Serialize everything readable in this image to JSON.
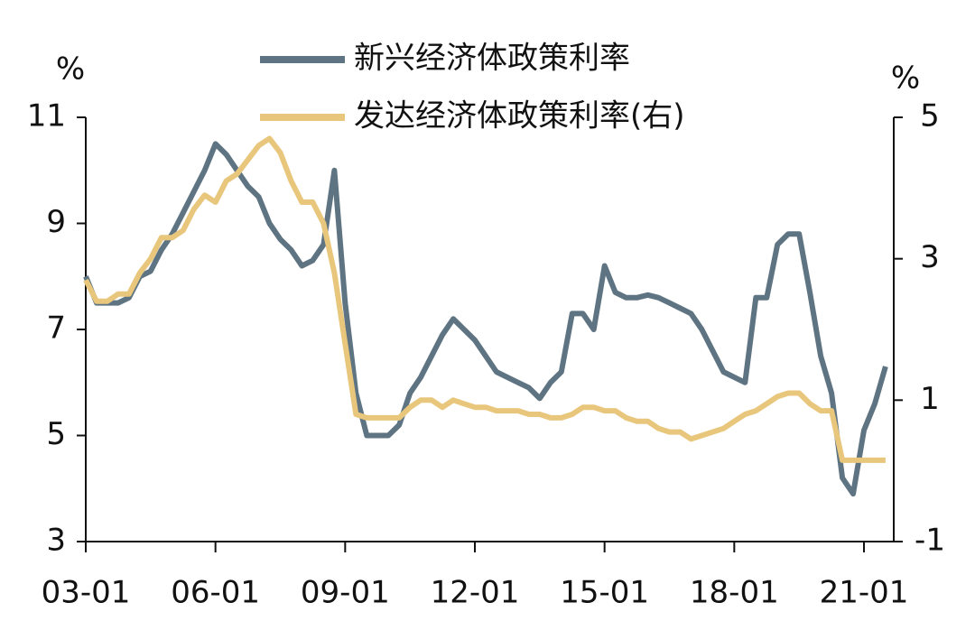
{
  "chart_data": {
    "type": "line",
    "ylabel": "%",
    "y2label": "%",
    "x": [
      "03-01",
      "03-04",
      "03-07",
      "03-10",
      "04-01",
      "04-04",
      "04-07",
      "04-10",
      "05-01",
      "05-04",
      "05-07",
      "05-10",
      "06-01",
      "06-04",
      "06-07",
      "06-10",
      "07-01",
      "07-04",
      "07-07",
      "07-10",
      "08-01",
      "08-04",
      "08-07",
      "08-10",
      "09-01",
      "09-04",
      "09-07",
      "09-10",
      "10-01",
      "10-04",
      "10-07",
      "10-10",
      "11-01",
      "11-04",
      "11-07",
      "11-10",
      "12-01",
      "12-04",
      "12-07",
      "12-10",
      "13-01",
      "13-04",
      "13-07",
      "13-10",
      "14-01",
      "14-04",
      "14-07",
      "14-10",
      "15-01",
      "15-04",
      "15-07",
      "15-10",
      "16-01",
      "16-04",
      "16-07",
      "16-10",
      "17-01",
      "17-04",
      "17-07",
      "17-10",
      "18-01",
      "18-04",
      "18-07",
      "18-10",
      "19-01",
      "19-04",
      "19-07",
      "19-10",
      "20-01",
      "20-04",
      "20-07",
      "20-10",
      "21-01",
      "21-04",
      "21-07"
    ],
    "series": [
      {
        "name": "新兴经济体政策利率",
        "color": "#5f7482",
        "axis": "y",
        "values": [
          8.0,
          7.5,
          7.5,
          7.5,
          7.6,
          8.0,
          8.1,
          8.5,
          8.8,
          9.2,
          9.6,
          10.0,
          10.5,
          10.3,
          10.0,
          9.7,
          9.5,
          9.0,
          8.7,
          8.5,
          8.2,
          8.3,
          8.6,
          10.0,
          7.5,
          5.8,
          5.0,
          5.0,
          5.0,
          5.2,
          5.8,
          6.1,
          6.5,
          6.9,
          7.2,
          7.0,
          6.8,
          6.5,
          6.2,
          6.1,
          6.0,
          5.9,
          5.7,
          6.0,
          6.2,
          7.3,
          7.3,
          7.0,
          8.2,
          7.7,
          7.6,
          7.6,
          7.65,
          7.6,
          7.5,
          7.4,
          7.3,
          7.0,
          6.6,
          6.2,
          6.1,
          6.0,
          7.6,
          7.6,
          8.6,
          8.8,
          8.8,
          7.7,
          6.5,
          5.8,
          4.2,
          3.9,
          5.1,
          5.6,
          6.3
        ]
      },
      {
        "name": "发达经济体政策利率(右)",
        "color": "#e8c77d",
        "axis": "y2",
        "values": [
          2.7,
          2.4,
          2.4,
          2.5,
          2.5,
          2.8,
          3.0,
          3.3,
          3.3,
          3.4,
          3.7,
          3.9,
          3.8,
          4.1,
          4.2,
          4.4,
          4.6,
          4.7,
          4.5,
          4.1,
          3.8,
          3.8,
          3.5,
          2.8,
          1.8,
          0.8,
          0.75,
          0.75,
          0.75,
          0.75,
          0.9,
          1.0,
          1.0,
          0.9,
          1.0,
          0.95,
          0.9,
          0.9,
          0.85,
          0.85,
          0.85,
          0.8,
          0.8,
          0.75,
          0.75,
          0.8,
          0.9,
          0.9,
          0.85,
          0.85,
          0.75,
          0.7,
          0.7,
          0.6,
          0.55,
          0.55,
          0.45,
          0.5,
          0.55,
          0.6,
          0.7,
          0.8,
          0.85,
          0.95,
          1.05,
          1.1,
          1.1,
          0.95,
          0.85,
          0.85,
          0.15,
          0.15,
          0.15,
          0.15,
          0.15
        ]
      }
    ],
    "ylim": [
      3,
      11
    ],
    "yticks": [
      3,
      5,
      7,
      9,
      11
    ],
    "y2lim": [
      -1,
      5
    ],
    "y2ticks": [
      -1,
      1,
      3,
      5
    ]
  }
}
